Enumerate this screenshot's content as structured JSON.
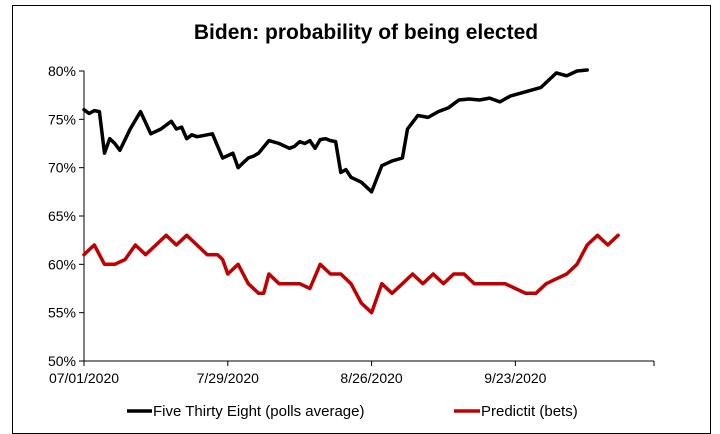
{
  "chart_data": {
    "type": "line",
    "title": "Biden: probability of being elected",
    "xlabel": "",
    "ylabel": "",
    "ylim": [
      50,
      80
    ],
    "yticks": [
      50,
      55,
      60,
      65,
      70,
      75,
      80
    ],
    "ytick_labels": [
      "50%",
      "55%",
      "60%",
      "65%",
      "70%",
      "75%",
      "80%"
    ],
    "xlim": [
      "2020-07-01",
      "2020-10-20"
    ],
    "xticks": [
      "2020-07-01",
      "2020-07-29",
      "2020-08-26",
      "2020-09-23"
    ],
    "xtick_labels": [
      "07/01/2020",
      "7/29/2020",
      "8/26/2020",
      "9/23/2020"
    ],
    "grid": false,
    "legend": "bottom",
    "series": [
      {
        "name": "Five Thirty Eight (polls average)",
        "color": "#000000",
        "x": [
          "2020-07-01",
          "2020-07-02",
          "2020-07-03",
          "2020-07-04",
          "2020-07-05",
          "2020-07-06",
          "2020-07-07",
          "2020-07-08",
          "2020-07-10",
          "2020-07-12",
          "2020-07-14",
          "2020-07-16",
          "2020-07-18",
          "2020-07-19",
          "2020-07-20",
          "2020-07-21",
          "2020-07-22",
          "2020-07-23",
          "2020-07-24",
          "2020-07-26",
          "2020-07-28",
          "2020-07-30",
          "2020-07-31",
          "2020-08-01",
          "2020-08-02",
          "2020-08-03",
          "2020-08-04",
          "2020-08-06",
          "2020-08-08",
          "2020-08-10",
          "2020-08-11",
          "2020-08-12",
          "2020-08-13",
          "2020-08-14",
          "2020-08-15",
          "2020-08-16",
          "2020-08-17",
          "2020-08-18",
          "2020-08-19",
          "2020-08-20",
          "2020-08-21",
          "2020-08-22",
          "2020-08-24",
          "2020-08-26",
          "2020-08-28",
          "2020-08-30",
          "2020-09-01",
          "2020-09-02",
          "2020-09-04",
          "2020-09-06",
          "2020-09-08",
          "2020-09-10",
          "2020-09-12",
          "2020-09-14",
          "2020-09-16",
          "2020-09-18",
          "2020-09-20",
          "2020-09-22",
          "2020-09-24",
          "2020-09-26",
          "2020-09-28",
          "2020-10-01",
          "2020-10-03",
          "2020-10-05",
          "2020-10-07"
        ],
        "values": [
          76,
          75.6,
          75.9,
          75.8,
          71.5,
          73,
          72.5,
          71.8,
          74,
          75.8,
          73.5,
          74,
          74.8,
          74,
          74.2,
          73,
          73.4,
          73.2,
          73.3,
          73.5,
          71,
          71.5,
          70,
          70.5,
          71,
          71.2,
          71.5,
          72.8,
          72.5,
          72,
          72.2,
          72.7,
          72.5,
          72.8,
          72,
          72.9,
          73,
          72.8,
          72.7,
          69.5,
          69.8,
          69,
          68.5,
          67.5,
          70.2,
          70.7,
          71,
          74,
          75.4,
          75.2,
          75.8,
          76.2,
          77,
          77.1,
          77,
          77.2,
          76.8,
          77.4,
          77.7,
          78,
          78.3,
          79.8,
          79.5,
          80,
          80.1
        ]
      },
      {
        "name": "Predictit (bets)",
        "color": "#c00000",
        "x": [
          "2020-07-01",
          "2020-07-02",
          "2020-07-03",
          "2020-07-05",
          "2020-07-07",
          "2020-07-09",
          "2020-07-11",
          "2020-07-13",
          "2020-07-15",
          "2020-07-17",
          "2020-07-19",
          "2020-07-21",
          "2020-07-23",
          "2020-07-25",
          "2020-07-27",
          "2020-07-28",
          "2020-07-29",
          "2020-07-31",
          "2020-08-02",
          "2020-08-04",
          "2020-08-05",
          "2020-08-06",
          "2020-08-08",
          "2020-08-10",
          "2020-08-12",
          "2020-08-14",
          "2020-08-16",
          "2020-08-18",
          "2020-08-20",
          "2020-08-22",
          "2020-08-24",
          "2020-08-25",
          "2020-08-26",
          "2020-08-28",
          "2020-08-30",
          "2020-09-01",
          "2020-09-03",
          "2020-09-05",
          "2020-09-07",
          "2020-09-09",
          "2020-09-11",
          "2020-09-13",
          "2020-09-15",
          "2020-09-17",
          "2020-09-19",
          "2020-09-21",
          "2020-09-23",
          "2020-09-25",
          "2020-09-27",
          "2020-09-29",
          "2020-10-01",
          "2020-10-03",
          "2020-10-05",
          "2020-10-07",
          "2020-10-09",
          "2020-10-11",
          "2020-10-13"
        ],
        "values": [
          61,
          61.5,
          62,
          60,
          60,
          60.5,
          62,
          61,
          62,
          63,
          62,
          63,
          62,
          61,
          61,
          60.5,
          59,
          60,
          58,
          57,
          57,
          59,
          58,
          58,
          58,
          57.5,
          60,
          59,
          59,
          58,
          56,
          55.5,
          55,
          58,
          57,
          58,
          59,
          58,
          59,
          58,
          59,
          59,
          58,
          58,
          58,
          58,
          57.5,
          57,
          57,
          58,
          58.5,
          59,
          60,
          62,
          63,
          62,
          63
        ]
      }
    ]
  }
}
